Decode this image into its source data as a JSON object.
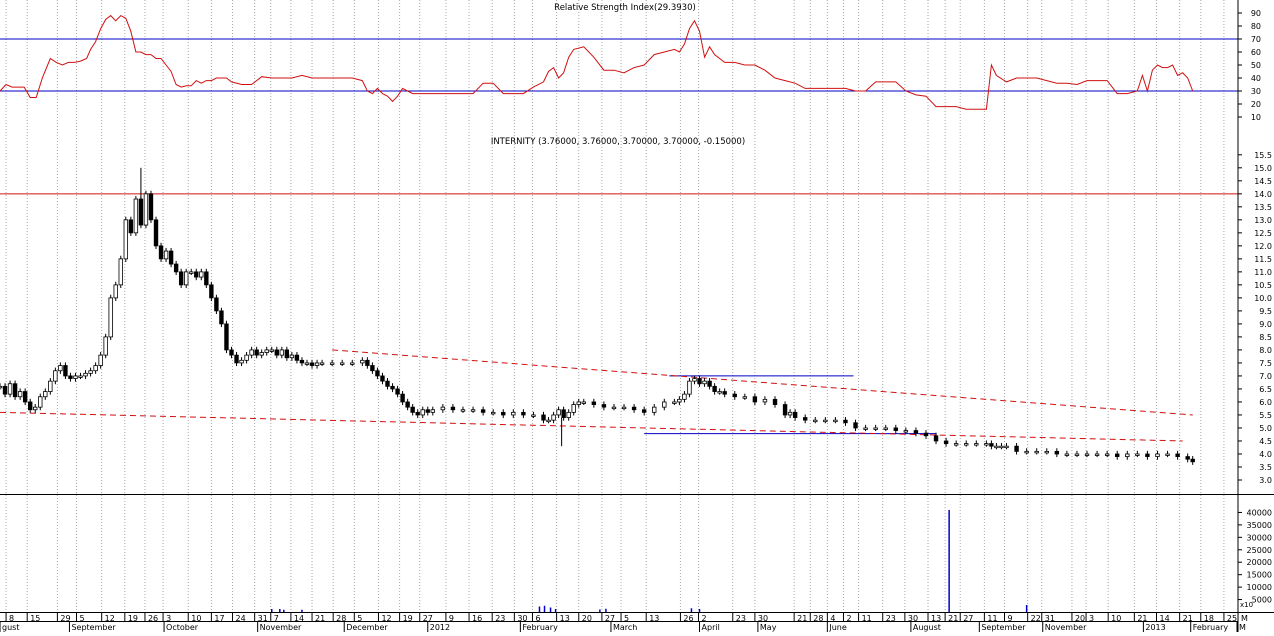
{
  "chart_data": [
    {
      "type": "line",
      "title": "Relative Strength Index(29.3930)",
      "ylim": [
        0,
        100
      ],
      "ticks": [
        10,
        20,
        30,
        40,
        50,
        60,
        70,
        80,
        90
      ],
      "levels": [
        30,
        70
      ],
      "level_color": "#0000c8",
      "series": [
        {
          "color": "#d01010",
          "x": [
            0,
            6,
            12,
            18,
            24,
            30,
            36,
            42,
            50,
            56,
            62,
            68,
            74,
            80,
            86,
            90,
            95,
            100,
            105,
            110,
            115,
            120,
            125,
            130,
            135,
            140,
            145,
            150,
            155,
            160,
            165,
            170,
            175,
            180,
            185,
            190,
            195,
            200,
            205,
            210,
            215,
            220,
            225,
            230,
            240,
            250,
            260,
            270,
            280,
            290,
            300,
            310,
            320,
            330,
            340,
            350,
            360,
            365,
            370,
            375,
            380,
            385,
            390,
            395,
            400,
            405,
            410,
            415,
            420,
            430,
            440,
            450,
            460,
            470,
            480,
            485,
            490,
            500,
            510,
            520,
            530,
            540,
            545,
            550,
            555,
            560,
            565,
            570,
            580,
            590,
            600,
            610,
            620,
            630,
            640,
            650,
            660,
            670,
            675,
            680,
            685,
            690,
            695,
            700,
            705,
            710,
            720,
            730,
            740,
            750,
            760,
            770,
            780,
            790,
            800,
            810,
            820,
            830,
            840,
            850,
            860,
            870,
            880,
            890,
            900,
            910,
            920,
            930,
            940,
            950,
            960,
            970,
            975,
            980,
            985,
            990,
            1000,
            1010,
            1020,
            1030,
            1040,
            1050,
            1060,
            1070,
            1080,
            1090,
            1100,
            1110,
            1120,
            1130,
            1135,
            1140,
            1145,
            1150,
            1155,
            1160,
            1165,
            1170,
            1175,
            1180,
            1185
          ],
          "y": [
            30,
            35,
            33,
            33,
            33,
            25,
            25,
            40,
            55,
            52,
            50,
            52,
            52,
            53,
            55,
            62,
            68,
            78,
            85,
            88,
            84,
            88,
            86,
            76,
            60,
            60,
            58,
            58,
            55,
            55,
            50,
            45,
            35,
            33,
            34,
            34,
            38,
            36,
            38,
            38,
            40,
            40,
            40,
            37,
            35,
            35,
            41,
            40,
            40,
            40,
            42,
            40,
            40,
            40,
            40,
            40,
            38,
            30,
            28,
            32,
            28,
            26,
            22,
            26,
            32,
            30,
            28,
            28,
            28,
            28,
            28,
            28,
            28,
            28,
            36,
            36,
            36,
            28,
            28,
            28,
            33,
            37,
            45,
            48,
            40,
            44,
            56,
            62,
            64,
            56,
            46,
            46,
            44,
            48,
            50,
            58,
            60,
            62,
            60,
            66,
            78,
            84,
            76,
            56,
            64,
            58,
            52,
            52,
            50,
            50,
            46,
            40,
            38,
            36,
            32,
            32,
            32,
            32,
            32,
            30,
            30,
            37,
            37,
            37,
            30,
            27,
            26,
            18,
            18,
            18,
            16,
            16,
            16,
            16,
            50,
            42,
            37,
            40,
            40,
            40,
            38,
            36,
            36,
            35,
            38,
            38,
            38,
            28,
            28,
            30,
            42,
            30,
            46,
            50,
            48,
            48,
            50,
            42,
            44,
            40,
            30
          ]
        }
      ],
      "x_range": [
        0,
        1230
      ]
    },
    {
      "type": "candlestick",
      "title": "INTERNITY (3.76000, 3.76000, 3.70000, 3.70000, -0.15000)",
      "ylim": [
        2.5,
        15.8
      ],
      "ticks": [
        3.0,
        3.5,
        4.0,
        4.5,
        5.0,
        5.5,
        6.0,
        6.5,
        7.0,
        7.5,
        8.0,
        8.5,
        9.0,
        9.5,
        10.0,
        10.5,
        11.0,
        11.5,
        12.0,
        12.5,
        13.0,
        13.5,
        14.0,
        14.5,
        15.0,
        15.5
      ],
      "tick_labels": [
        "3.0",
        "3.5",
        "4.0",
        "4.5",
        "5.0",
        "5.5",
        "6.0",
        "6.5",
        "7.0",
        "7.5",
        "8.0",
        "8.5",
        "9.0",
        "9.5",
        "10.0",
        "10.5",
        "11.0",
        "11.5",
        "12.0",
        "12.5",
        "13.0",
        "13.5",
        "14.0",
        "14.5",
        "15.0",
        "15.5"
      ],
      "x_range": [
        0,
        1230
      ],
      "close_series": {
        "x": [
          0,
          5,
          10,
          15,
          20,
          25,
          30,
          35,
          40,
          45,
          50,
          55,
          60,
          65,
          70,
          75,
          80,
          85,
          90,
          95,
          100,
          105,
          110,
          115,
          120,
          125,
          130,
          135,
          140,
          145,
          150,
          155,
          160,
          165,
          170,
          175,
          180,
          185,
          190,
          195,
          200,
          205,
          210,
          215,
          220,
          225,
          230,
          235,
          240,
          245,
          250,
          255,
          260,
          265,
          270,
          275,
          280,
          285,
          290,
          295,
          300,
          305,
          310,
          315,
          320,
          330,
          340,
          350,
          360,
          365,
          370,
          375,
          380,
          385,
          390,
          395,
          400,
          405,
          410,
          415,
          420,
          425,
          430,
          440,
          450,
          460,
          470,
          480,
          490,
          500,
          510,
          520,
          530,
          540,
          545,
          550,
          555,
          560,
          565,
          570,
          575,
          580,
          590,
          600,
          610,
          620,
          630,
          640,
          650,
          660,
          670,
          675,
          680,
          685,
          690,
          695,
          700,
          705,
          710,
          715,
          720,
          730,
          740,
          750,
          760,
          770,
          780,
          785,
          790,
          800,
          810,
          820,
          830,
          840,
          850,
          860,
          870,
          880,
          890,
          900,
          910,
          920,
          930,
          940,
          950,
          960,
          970,
          980,
          985,
          990,
          995,
          1000,
          1010,
          1020,
          1030,
          1040,
          1050,
          1060,
          1070,
          1080,
          1090,
          1100,
          1110,
          1120,
          1130,
          1140,
          1150,
          1160,
          1170,
          1180,
          1185
        ],
        "y": [
          6.6,
          6.3,
          6.7,
          6.2,
          6.4,
          6.0,
          5.7,
          5.8,
          6.2,
          6.4,
          6.8,
          7.2,
          7.4,
          7.0,
          6.9,
          7.0,
          7.0,
          7.1,
          7.2,
          7.4,
          7.8,
          8.5,
          10.0,
          10.5,
          11.5,
          13.0,
          12.5,
          13.8,
          12.8,
          14.0,
          13.0,
          12.0,
          11.5,
          11.8,
          11.3,
          11.0,
          10.5,
          11.0,
          11.0,
          10.8,
          11.0,
          10.5,
          10.0,
          9.5,
          9.0,
          8.0,
          7.8,
          7.5,
          7.6,
          7.8,
          8.0,
          7.8,
          7.9,
          8.0,
          8.0,
          7.8,
          8.0,
          7.7,
          7.8,
          7.6,
          7.5,
          7.5,
          7.4,
          7.5,
          7.5,
          7.5,
          7.5,
          7.5,
          7.6,
          7.4,
          7.2,
          7.0,
          6.8,
          6.6,
          6.5,
          6.3,
          6.0,
          5.8,
          5.6,
          5.5,
          5.7,
          5.6,
          5.7,
          5.8,
          5.7,
          5.7,
          5.7,
          5.6,
          5.6,
          5.5,
          5.6,
          5.5,
          5.5,
          5.3,
          5.3,
          5.5,
          5.7,
          5.4,
          5.6,
          5.9,
          6.0,
          6.0,
          5.9,
          5.8,
          5.8,
          5.8,
          5.7,
          5.6,
          5.8,
          6.0,
          6.0,
          6.1,
          6.3,
          6.8,
          6.9,
          6.7,
          6.8,
          6.6,
          6.4,
          6.4,
          6.3,
          6.2,
          6.2,
          6.0,
          6.1,
          5.9,
          5.5,
          5.6,
          5.4,
          5.3,
          5.3,
          5.3,
          5.3,
          5.2,
          5.0,
          5.0,
          5.0,
          5.0,
          4.9,
          4.9,
          4.8,
          4.7,
          4.5,
          4.4,
          4.4,
          4.4,
          4.4,
          4.4,
          4.3,
          4.3,
          4.3,
          4.3,
          4.1,
          4.1,
          4.1,
          4.1,
          4.0,
          4.0,
          4.0,
          4.0,
          4.0,
          4.0,
          3.9,
          4.0,
          4.0,
          3.9,
          4.0,
          4.0,
          3.9,
          3.8,
          3.7
        ]
      },
      "spike_highs": [
        {
          "x": 140,
          "y": 15.0
        },
        {
          "x": 558,
          "y": 4.3
        }
      ],
      "horizontal_lines": [
        {
          "y": 14.0,
          "color": "#d01010",
          "style": "solid"
        },
        {
          "x": [
            665,
            848
          ],
          "y": 7.0,
          "color": "#0000c8",
          "style": "solid"
        },
        {
          "x": [
            640,
            930
          ],
          "y": 4.78,
          "color": "#0000c8",
          "style": "solid"
        }
      ],
      "trendlines": [
        {
          "x": [
            330,
            1185
          ],
          "y": [
            8.0,
            5.5
          ],
          "color": "#d01010",
          "style": "dashed"
        },
        {
          "x": [
            0,
            1175
          ],
          "y": [
            5.6,
            4.5
          ],
          "color": "#d01010",
          "style": "dashed"
        }
      ]
    },
    {
      "type": "bar",
      "title": "",
      "ylim": [
        0,
        45000
      ],
      "ticks": [
        5000,
        10000,
        15000,
        20000,
        25000,
        30000,
        35000,
        40000
      ],
      "tick_labels": [
        "5000",
        "10000",
        "15000",
        "20000",
        "25000",
        "30000",
        "35000",
        "40000"
      ],
      "corner_label": "x10",
      "x_range": [
        0,
        1230
      ],
      "bar_color": "#0000c8",
      "bars": [
        {
          "x": 943,
          "v": 41000
        },
        {
          "x": 1020,
          "v": 2800
        },
        {
          "x": 536,
          "v": 2200
        },
        {
          "x": 541,
          "v": 2500
        },
        {
          "x": 547,
          "v": 1800
        },
        {
          "x": 552,
          "v": 1200
        },
        {
          "x": 596,
          "v": 1000
        },
        {
          "x": 602,
          "v": 1300
        },
        {
          "x": 687,
          "v": 1500
        },
        {
          "x": 695,
          "v": 1200
        },
        {
          "x": 270,
          "v": 1200
        },
        {
          "x": 278,
          "v": 1200
        },
        {
          "x": 282,
          "v": 900
        },
        {
          "x": 300,
          "v": 900
        }
      ]
    }
  ],
  "x_axis": {
    "day_labels": [
      {
        "x": 9,
        "text": "8"
      },
      {
        "x": 30,
        "text": "15"
      },
      {
        "x": 60,
        "text": "29"
      },
      {
        "x": 79,
        "text": "5"
      },
      {
        "x": 104,
        "text": "12"
      },
      {
        "x": 127,
        "text": "19"
      },
      {
        "x": 147,
        "text": "26"
      },
      {
        "x": 165,
        "text": "3"
      },
      {
        "x": 190,
        "text": "10"
      },
      {
        "x": 213,
        "text": "17"
      },
      {
        "x": 234,
        "text": "24"
      },
      {
        "x": 256,
        "text": "31"
      },
      {
        "x": 272,
        "text": "7"
      },
      {
        "x": 292,
        "text": "14"
      },
      {
        "x": 313,
        "text": "21"
      },
      {
        "x": 334,
        "text": "28"
      },
      {
        "x": 355,
        "text": "5"
      },
      {
        "x": 379,
        "text": "12"
      },
      {
        "x": 400,
        "text": "19"
      },
      {
        "x": 420,
        "text": "27"
      },
      {
        "x": 446,
        "text": "9"
      },
      {
        "x": 469,
        "text": "16"
      },
      {
        "x": 492,
        "text": "23"
      },
      {
        "x": 514,
        "text": "30"
      },
      {
        "x": 532,
        "text": "6"
      },
      {
        "x": 556,
        "text": "13"
      },
      {
        "x": 578,
        "text": "20"
      },
      {
        "x": 601,
        "text": "27"
      },
      {
        "x": 620,
        "text": "5"
      },
      {
        "x": 645,
        "text": "13"
      },
      {
        "x": 679,
        "text": "26"
      },
      {
        "x": 697,
        "text": "2"
      },
      {
        "x": 731,
        "text": "23"
      },
      {
        "x": 753,
        "text": "30"
      },
      {
        "x": 792,
        "text": "21"
      },
      {
        "x": 808,
        "text": "28"
      },
      {
        "x": 825,
        "text": "4"
      },
      {
        "x": 841,
        "text": "2"
      },
      {
        "x": 856,
        "text": "11"
      },
      {
        "x": 880,
        "text": "23"
      },
      {
        "x": 902,
        "text": "30"
      },
      {
        "x": 925,
        "text": "13"
      },
      {
        "x": 942,
        "text": "21"
      },
      {
        "x": 957,
        "text": "27"
      },
      {
        "x": 981,
        "text": "11"
      },
      {
        "x": 1001,
        "text": "9"
      },
      {
        "x": 1024,
        "text": "22"
      },
      {
        "x": 1038,
        "text": "31"
      },
      {
        "x": 1068,
        "text": "20"
      },
      {
        "x": 1082,
        "text": "3"
      },
      {
        "x": 1104,
        "text": "10"
      },
      {
        "x": 1130,
        "text": "21"
      },
      {
        "x": 1152,
        "text": "14"
      },
      {
        "x": 1175,
        "text": "21"
      },
      {
        "x": 1196,
        "text": "18"
      },
      {
        "x": 1219,
        "text": "25"
      },
      {
        "x": 1233,
        "text": "M"
      }
    ],
    "month_labels": [
      {
        "x": 0,
        "text": "gust"
      },
      {
        "x": 69,
        "text": "September"
      },
      {
        "x": 163,
        "text": "October"
      },
      {
        "x": 256,
        "text": "November"
      },
      {
        "x": 342,
        "text": "December"
      },
      {
        "x": 425,
        "text": "2012"
      },
      {
        "x": 517,
        "text": "February"
      },
      {
        "x": 607,
        "text": "March"
      },
      {
        "x": 695,
        "text": "April"
      },
      {
        "x": 753,
        "text": "May"
      },
      {
        "x": 822,
        "text": "June"
      },
      {
        "x": 905,
        "text": "August"
      },
      {
        "x": 973,
        "text": "September"
      },
      {
        "x": 1036,
        "text": "November"
      },
      {
        "x": 1136,
        "text": "2013"
      },
      {
        "x": 1183,
        "text": "February"
      },
      {
        "x": 1229,
        "text": "M"
      }
    ]
  }
}
